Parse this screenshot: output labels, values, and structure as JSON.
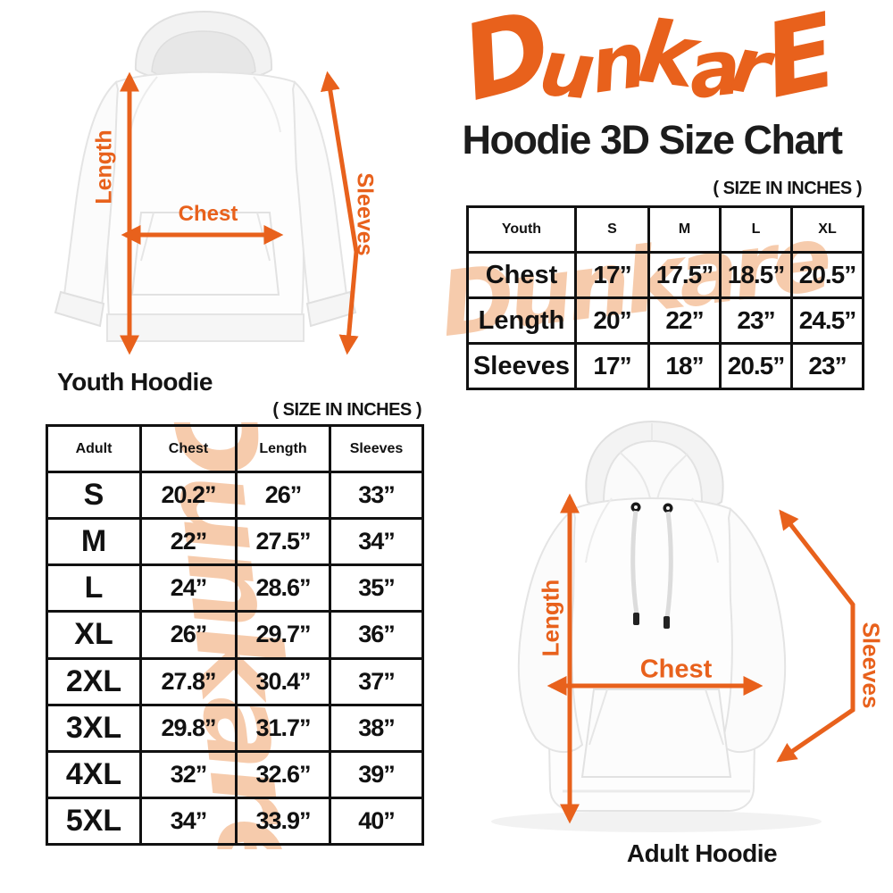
{
  "colors": {
    "accent": "#E8611C",
    "watermark": "#F6C9A8",
    "ink": "#141414"
  },
  "logo": {
    "text": "DunkarE",
    "letters": [
      "D",
      "u",
      "n",
      "k",
      "a",
      "r",
      "E"
    ]
  },
  "title": "Hoodie 3D Size Chart",
  "youth_section": {
    "diagram_label": "Youth Hoodie",
    "arrow_labels": {
      "length": "Length",
      "chest": "Chest",
      "sleeves": "Sleeves"
    },
    "size_note": "( SIZE IN INCHES )",
    "watermark_text": "Dunkare",
    "table": {
      "header": [
        "Youth",
        "S",
        "M",
        "L",
        "XL"
      ],
      "rows": [
        [
          "Chest",
          "17”",
          "17.5”",
          "18.5”",
          "20.5”"
        ],
        [
          "Length",
          "20”",
          "22”",
          "23”",
          "24.5”"
        ],
        [
          "Sleeves",
          "17”",
          "18”",
          "20.5”",
          "23”"
        ]
      ]
    }
  },
  "adult_section": {
    "diagram_label": "Adult Hoodie",
    "arrow_labels": {
      "length": "Length",
      "chest": "Chest",
      "sleeves": "Sleeves"
    },
    "size_note": "( SIZE IN INCHES )",
    "watermark_text": "Dunkare",
    "table": {
      "header": [
        "Adult",
        "Chest",
        "Length",
        "Sleeves"
      ],
      "rows": [
        [
          "S",
          "20.2”",
          "26”",
          "33”"
        ],
        [
          "M",
          "22”",
          "27.5”",
          "34”"
        ],
        [
          "L",
          "24”",
          "28.6”",
          "35”"
        ],
        [
          "XL",
          "26”",
          "29.7”",
          "36”"
        ],
        [
          "2XL",
          "27.8”",
          "30.4”",
          "37”"
        ],
        [
          "3XL",
          "29.8”",
          "31.7”",
          "38”"
        ],
        [
          "4XL",
          "32”",
          "32.6”",
          "39”"
        ],
        [
          "5XL",
          "34”",
          "33.9”",
          "40”"
        ]
      ]
    }
  }
}
